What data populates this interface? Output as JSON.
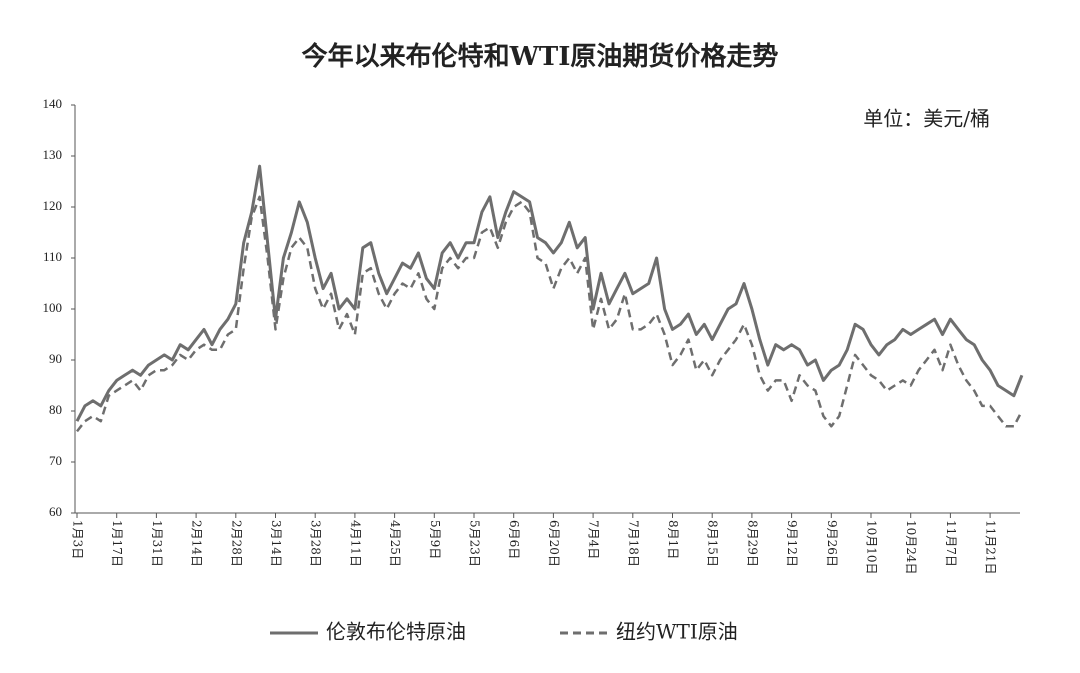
{
  "chart_data": {
    "type": "line",
    "title": "今年以来布伦特和WTI原油期货价格走势",
    "annotation": "单位：美元/桶",
    "categories": [
      "1月3日",
      null,
      null,
      null,
      null,
      "1月17日",
      null,
      null,
      null,
      null,
      "1月31日",
      null,
      null,
      null,
      null,
      "2月14日",
      null,
      null,
      null,
      null,
      "2月28日",
      null,
      null,
      null,
      null,
      "3月14日",
      null,
      null,
      null,
      null,
      "3月28日",
      null,
      null,
      null,
      null,
      "4月11日",
      null,
      null,
      null,
      null,
      "4月25日",
      null,
      null,
      null,
      null,
      "5月9日",
      null,
      null,
      null,
      null,
      "5月23日",
      null,
      null,
      null,
      null,
      "6月6日",
      null,
      null,
      null,
      null,
      "6月20日",
      null,
      null,
      null,
      null,
      "7月4日",
      null,
      null,
      null,
      null,
      "7月18日",
      null,
      null,
      null,
      null,
      "8月1日",
      null,
      null,
      null,
      null,
      "8月15日",
      null,
      null,
      null,
      null,
      "8月29日",
      null,
      null,
      null,
      null,
      "9月12日",
      null,
      null,
      null,
      null,
      "9月26日",
      null,
      null,
      null,
      null,
      "10月10日",
      null,
      null,
      null,
      null,
      "10月24日",
      null,
      null,
      null,
      null,
      "11月7日",
      null,
      null,
      null,
      null,
      "11月21日",
      null,
      null,
      null,
      null
    ],
    "series": [
      {
        "name": "伦敦布伦特原油",
        "color": "#6e6e6e",
        "style": "solid",
        "values": [
          78,
          81,
          82,
          81,
          84,
          86,
          87,
          88,
          87,
          89,
          90,
          91,
          90,
          93,
          92,
          94,
          96,
          93,
          96,
          98,
          101,
          113,
          119,
          128,
          113,
          98,
          110,
          115,
          121,
          117,
          110,
          104,
          107,
          100,
          102,
          100,
          112,
          113,
          107,
          103,
          106,
          109,
          108,
          111,
          106,
          104,
          111,
          113,
          110,
          113,
          113,
          119,
          122,
          114,
          119,
          123,
          122,
          121,
          114,
          113,
          111,
          113,
          117,
          112,
          114,
          100,
          107,
          101,
          104,
          107,
          103,
          104,
          105,
          110,
          100,
          96,
          97,
          99,
          95,
          97,
          94,
          97,
          100,
          101,
          105,
          100,
          94,
          89,
          93,
          92,
          93,
          92,
          89,
          90,
          86,
          88,
          89,
          92,
          97,
          96,
          93,
          91,
          93,
          94,
          96,
          95,
          96,
          97,
          98,
          95,
          98,
          96,
          94,
          93,
          90,
          88,
          85,
          84,
          83,
          87
        ]
      },
      {
        "name": "纽约WTI原油",
        "color": "#6e6e6e",
        "style": "dashed",
        "values": [
          76,
          78,
          79,
          78,
          83,
          84,
          85,
          86,
          84,
          87,
          88,
          88,
          89,
          91,
          90,
          92,
          93,
          92,
          92,
          95,
          96,
          108,
          118,
          122,
          110,
          96,
          106,
          112,
          114,
          112,
          104,
          100,
          103,
          96,
          99,
          95,
          107,
          108,
          103,
          100,
          103,
          105,
          104,
          107,
          102,
          100,
          108,
          110,
          108,
          110,
          110,
          115,
          116,
          112,
          117,
          120,
          121,
          119,
          110,
          109,
          104,
          108,
          110,
          107,
          110,
          96,
          102,
          96,
          98,
          103,
          96,
          96,
          97,
          99,
          95,
          89,
          91,
          94,
          88,
          90,
          87,
          90,
          92,
          94,
          97,
          93,
          87,
          84,
          86,
          86,
          82,
          87,
          85,
          84,
          79,
          77,
          79,
          85,
          91,
          89,
          87,
          86,
          84,
          85,
          86,
          85,
          88,
          90,
          92,
          88,
          93,
          89,
          86,
          84,
          81,
          81,
          79,
          77,
          77,
          80
        ]
      }
    ],
    "ylim": [
      60,
      140
    ],
    "yticks": [
      60,
      70,
      80,
      90,
      100,
      110,
      120,
      130,
      140
    ],
    "grid": false
  }
}
